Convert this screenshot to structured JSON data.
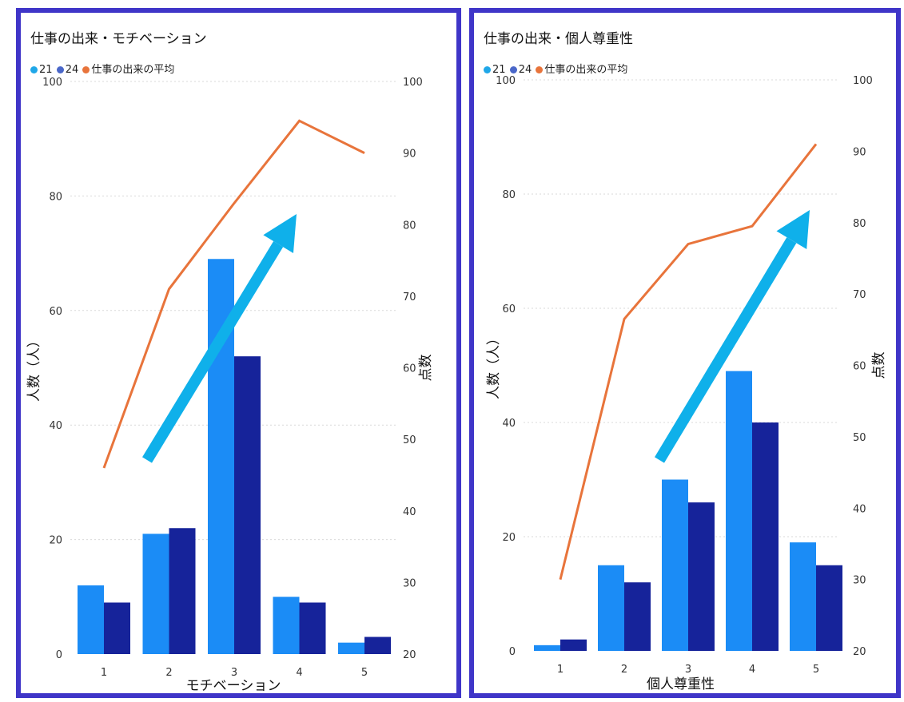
{
  "charts": [
    {
      "title": "仕事の出来・モチベーション",
      "legend": [
        {
          "label": "21",
          "color": "#1fa7e8"
        },
        {
          "label": "24",
          "color": "#4a67c9"
        },
        {
          "label": "仕事の出来の平均",
          "color": "#e8743b"
        }
      ]
    },
    {
      "title": "仕事の出来・個人尊重性",
      "legend": [
        {
          "label": "21",
          "color": "#1fa7e8"
        },
        {
          "label": "24",
          "color": "#4a67c9"
        },
        {
          "label": "仕事の出来の平均",
          "color": "#e8743b"
        }
      ]
    }
  ],
  "chart_data": [
    {
      "type": "bar",
      "title": "仕事の出来・モチベーション",
      "categories": [
        "1",
        "2",
        "3",
        "4",
        "5"
      ],
      "series": [
        {
          "name": "21",
          "axis": "left",
          "values": [
            12,
            21,
            69,
            10,
            2
          ],
          "color": "#1b8cf6"
        },
        {
          "name": "24",
          "axis": "left",
          "values": [
            9,
            22,
            52,
            9,
            3
          ],
          "color": "#16239a"
        },
        {
          "name": "仕事の出来の平均",
          "axis": "right",
          "type": "line",
          "values": [
            46,
            71,
            83,
            94.5,
            90
          ],
          "color": "#e8743b"
        }
      ],
      "xlabel": "モチベーション",
      "ylabel": "人数（人）",
      "y2label": "点数",
      "ylim": [
        0,
        100
      ],
      "y2lim": [
        20,
        100
      ],
      "yticks": [
        0,
        20,
        40,
        60,
        80,
        100
      ],
      "y2ticks": [
        20,
        30,
        40,
        50,
        60,
        70,
        80,
        90,
        100
      ],
      "grid": true,
      "legend_position": "top-left",
      "arrow_color": "#0fb0ea"
    },
    {
      "type": "bar",
      "title": "仕事の出来・個人尊重性",
      "categories": [
        "1",
        "2",
        "3",
        "4",
        "5"
      ],
      "series": [
        {
          "name": "21",
          "axis": "left",
          "values": [
            1,
            15,
            30,
            49,
            19
          ],
          "color": "#1b8cf6"
        },
        {
          "name": "24",
          "axis": "left",
          "values": [
            2,
            12,
            26,
            40,
            15
          ],
          "color": "#16239a"
        },
        {
          "name": "仕事の出来の平均",
          "axis": "right",
          "type": "line",
          "values": [
            30,
            66.5,
            77,
            79.5,
            91
          ],
          "color": "#e8743b"
        }
      ],
      "xlabel": "個人尊重性",
      "ylabel": "人数（人）",
      "y2label": "点数",
      "ylim": [
        0,
        100
      ],
      "y2lim": [
        20,
        100
      ],
      "yticks": [
        0,
        20,
        40,
        60,
        80,
        100
      ],
      "y2ticks": [
        20,
        30,
        40,
        50,
        60,
        70,
        80,
        90,
        100
      ],
      "grid": true,
      "legend_position": "top-left",
      "arrow_color": "#0fb0ea"
    }
  ]
}
